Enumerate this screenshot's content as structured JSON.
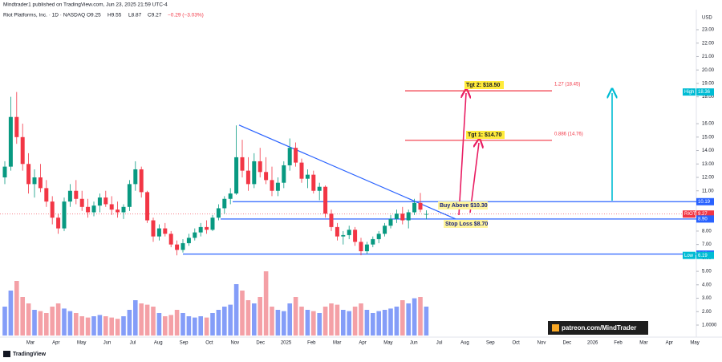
{
  "header": {
    "published": "Mindtrader1 published on TradingView.com, Jun 23, 2025 21:59 UTC-4",
    "symbol": "Riot Platforms, Inc. · 1D · NASDAQ",
    "open": "O9.25",
    "high": "H9.55",
    "low": "L8.87",
    "close": "C9.27",
    "change": "−0.29 (−3.03%)"
  },
  "chart_data": {
    "type": "candlestick",
    "currency": "USD",
    "up_color": "#089981",
    "down_color": "#f23645",
    "volume_up_color": "#5b7cf5",
    "volume_down_color": "#f08088",
    "xticks": [
      "Mar",
      "Apr",
      "May",
      "Jun",
      "Jul",
      "Aug",
      "Sep",
      "Oct",
      "Nov",
      "Dec",
      "2025",
      "Feb",
      "Mar",
      "Apr",
      "May",
      "Jun",
      "Jul",
      "Aug",
      "Sep",
      "Oct",
      "Nov",
      "Dec",
      "2026",
      "Feb",
      "Mar",
      "Apr",
      "May"
    ],
    "ylim": [
      1,
      23
    ],
    "yticks": [
      {
        "value": 23,
        "label": "23.00"
      },
      {
        "value": 22,
        "label": "22.00"
      },
      {
        "value": 21,
        "label": "21.00"
      },
      {
        "value": 20,
        "label": "20.00"
      },
      {
        "value": 19,
        "label": "19.00"
      },
      {
        "value": 18,
        "label": "18.00"
      },
      {
        "value": 16,
        "label": "16.00"
      },
      {
        "value": 15,
        "label": "15.00"
      },
      {
        "value": 14,
        "label": "14.00"
      },
      {
        "value": 13,
        "label": "13.00"
      },
      {
        "value": 12,
        "label": "12.00"
      },
      {
        "value": 11,
        "label": "11.00"
      },
      {
        "value": 8,
        "label": "8.00"
      },
      {
        "value": 7,
        "label": "7.00"
      },
      {
        "value": 6,
        "label": "6.00"
      },
      {
        "value": 5,
        "label": "5.00"
      },
      {
        "value": 4,
        "label": "4.00"
      },
      {
        "value": 3,
        "label": "3.00"
      },
      {
        "value": 2,
        "label": "2.00"
      },
      {
        "value": 1,
        "label": "1.0000"
      }
    ],
    "volume_ylim": [
      0,
      150
    ],
    "open": [
      12,
      12.8,
      16.5,
      15,
      13,
      11.5,
      12,
      11.2,
      10.2,
      9,
      8.2,
      10.2,
      11,
      10.4,
      9.8,
      9.4,
      9.9,
      10.5,
      10,
      9.6,
      9.4,
      9.8,
      11.5,
      12.6,
      10.9,
      8.8,
      7.6,
      8.2,
      7.8,
      7,
      6.6,
      7.1,
      7.5,
      7.9,
      8.3,
      8.1,
      9,
      9.7,
      10.4,
      10.8,
      13.5,
      12.5,
      11.5,
      13.2,
      12.4,
      11.8,
      11,
      11.6,
      12.9,
      14.2,
      13.1,
      11.9,
      12.2,
      11,
      11.3,
      9.3,
      8.3,
      7.6,
      7.7,
      8.1,
      7.2,
      6.5,
      7,
      7.4,
      7.8,
      8.4,
      8.9,
      9.3,
      8.8,
      9.4,
      10.1,
      9.25
    ],
    "high": [
      13.2,
      18,
      18.36,
      16,
      13.8,
      12.6,
      13,
      11.8,
      10.6,
      9.3,
      10.5,
      11.5,
      11.8,
      11,
      10.4,
      10.2,
      10.8,
      11,
      10.6,
      10.2,
      10,
      11.8,
      13.2,
      12.8,
      11,
      9,
      8.5,
      8.6,
      8,
      7.3,
      7.4,
      7.8,
      8.2,
      8.6,
      8.8,
      9.2,
      10,
      10.6,
      11.2,
      15.87,
      14.8,
      13.5,
      13.8,
      14.2,
      13.5,
      12.8,
      12,
      13.2,
      14.9,
      14.6,
      13.4,
      12.6,
      12.5,
      11.6,
      11.4,
      9.6,
      8.6,
      8,
      8.4,
      8.3,
      7.5,
      7.2,
      7.6,
      8,
      8.6,
      9.2,
      9.6,
      9.8,
      9.6,
      10.4,
      10.84,
      9.55
    ],
    "low": [
      11.5,
      12.5,
      14.5,
      12.5,
      10.8,
      10.5,
      10.9,
      9.8,
      8.5,
      7.8,
      8,
      9.8,
      10,
      9.5,
      9,
      9.1,
      9.4,
      9.8,
      9.2,
      9,
      8.9,
      9.5,
      11,
      10.5,
      8.6,
      7.2,
      7.3,
      7.6,
      6.8,
      6.19,
      6.4,
      6.9,
      7.3,
      7.6,
      7.8,
      8,
      8.8,
      9.3,
      10,
      10.7,
      12,
      11,
      11.2,
      12,
      11.5,
      10.6,
      10.6,
      11.2,
      12.5,
      12.8,
      11.6,
      11.2,
      10.8,
      10.3,
      9,
      8,
      7.3,
      7,
      7.4,
      6.9,
      6.2,
      6.3,
      6.8,
      7.1,
      7.6,
      8.2,
      8.6,
      8.5,
      8.2,
      9.2,
      9.4,
      8.87
    ],
    "close": [
      12.8,
      16.5,
      15,
      13,
      11.5,
      12,
      11.2,
      10.2,
      9,
      8.2,
      10.2,
      11,
      10.4,
      9.8,
      9.4,
      9.9,
      10.5,
      10,
      9.6,
      9.4,
      9.8,
      11.5,
      12.6,
      10.9,
      8.8,
      7.6,
      8.2,
      7.8,
      7,
      6.6,
      7.1,
      7.5,
      7.9,
      8.3,
      8.1,
      9,
      9.7,
      10.4,
      10.8,
      13.5,
      12.5,
      11.5,
      13.2,
      12.4,
      11.8,
      11,
      11.6,
      12.9,
      14.2,
      13.1,
      11.9,
      12.2,
      11,
      11.3,
      9.3,
      8.3,
      7.6,
      7.7,
      8.1,
      7.2,
      6.5,
      7,
      7.4,
      7.8,
      8.4,
      8.9,
      9.3,
      8.8,
      9.4,
      10.1,
      9.6,
      9.27
    ],
    "volume": [
      45,
      70,
      85,
      60,
      50,
      40,
      38,
      35,
      45,
      50,
      42,
      38,
      35,
      30,
      28,
      30,
      32,
      30,
      28,
      26,
      30,
      40,
      55,
      50,
      48,
      45,
      35,
      30,
      32,
      40,
      35,
      30,
      28,
      30,
      28,
      35,
      40,
      45,
      48,
      80,
      70,
      55,
      50,
      60,
      100,
      45,
      40,
      38,
      50,
      60,
      45,
      40,
      38,
      35,
      45,
      50,
      48,
      40,
      38,
      45,
      50,
      40,
      35,
      38,
      40,
      42,
      45,
      55,
      50,
      58,
      60,
      45
    ],
    "price_labels": [
      {
        "name": "High",
        "value": 18.36,
        "color": "#00bcd4"
      },
      {
        "value": 10.19,
        "color": "#2962ff"
      },
      {
        "name": "RIOT",
        "value": 9.27,
        "color": "#f23645"
      },
      {
        "value": {
          "value": 8.9,
          "label": "8.90"
        },
        "color": "#2962ff"
      },
      {
        "value": 6.29,
        "color": "#2962ff"
      },
      {
        "name": "Low",
        "value": 6.19,
        "color": "#00bcd4"
      }
    ],
    "fib_levels": [
      {
        "label": "1.27 (18.45)",
        "value": 18.45
      },
      {
        "label": "0.886 (14.76)",
        "value": 14.76
      }
    ],
    "trendline": [
      15.9,
      8.9
    ],
    "annotations": {
      "tgt2": "Tgt 2: $18.50",
      "tgt1": "Tgt 1: $14.70",
      "buy": "Buy Above $10.30",
      "stop": "Stop Loss $8.70"
    },
    "watermark": "patreon.com/MindTrader",
    "brand": "TradingView"
  }
}
